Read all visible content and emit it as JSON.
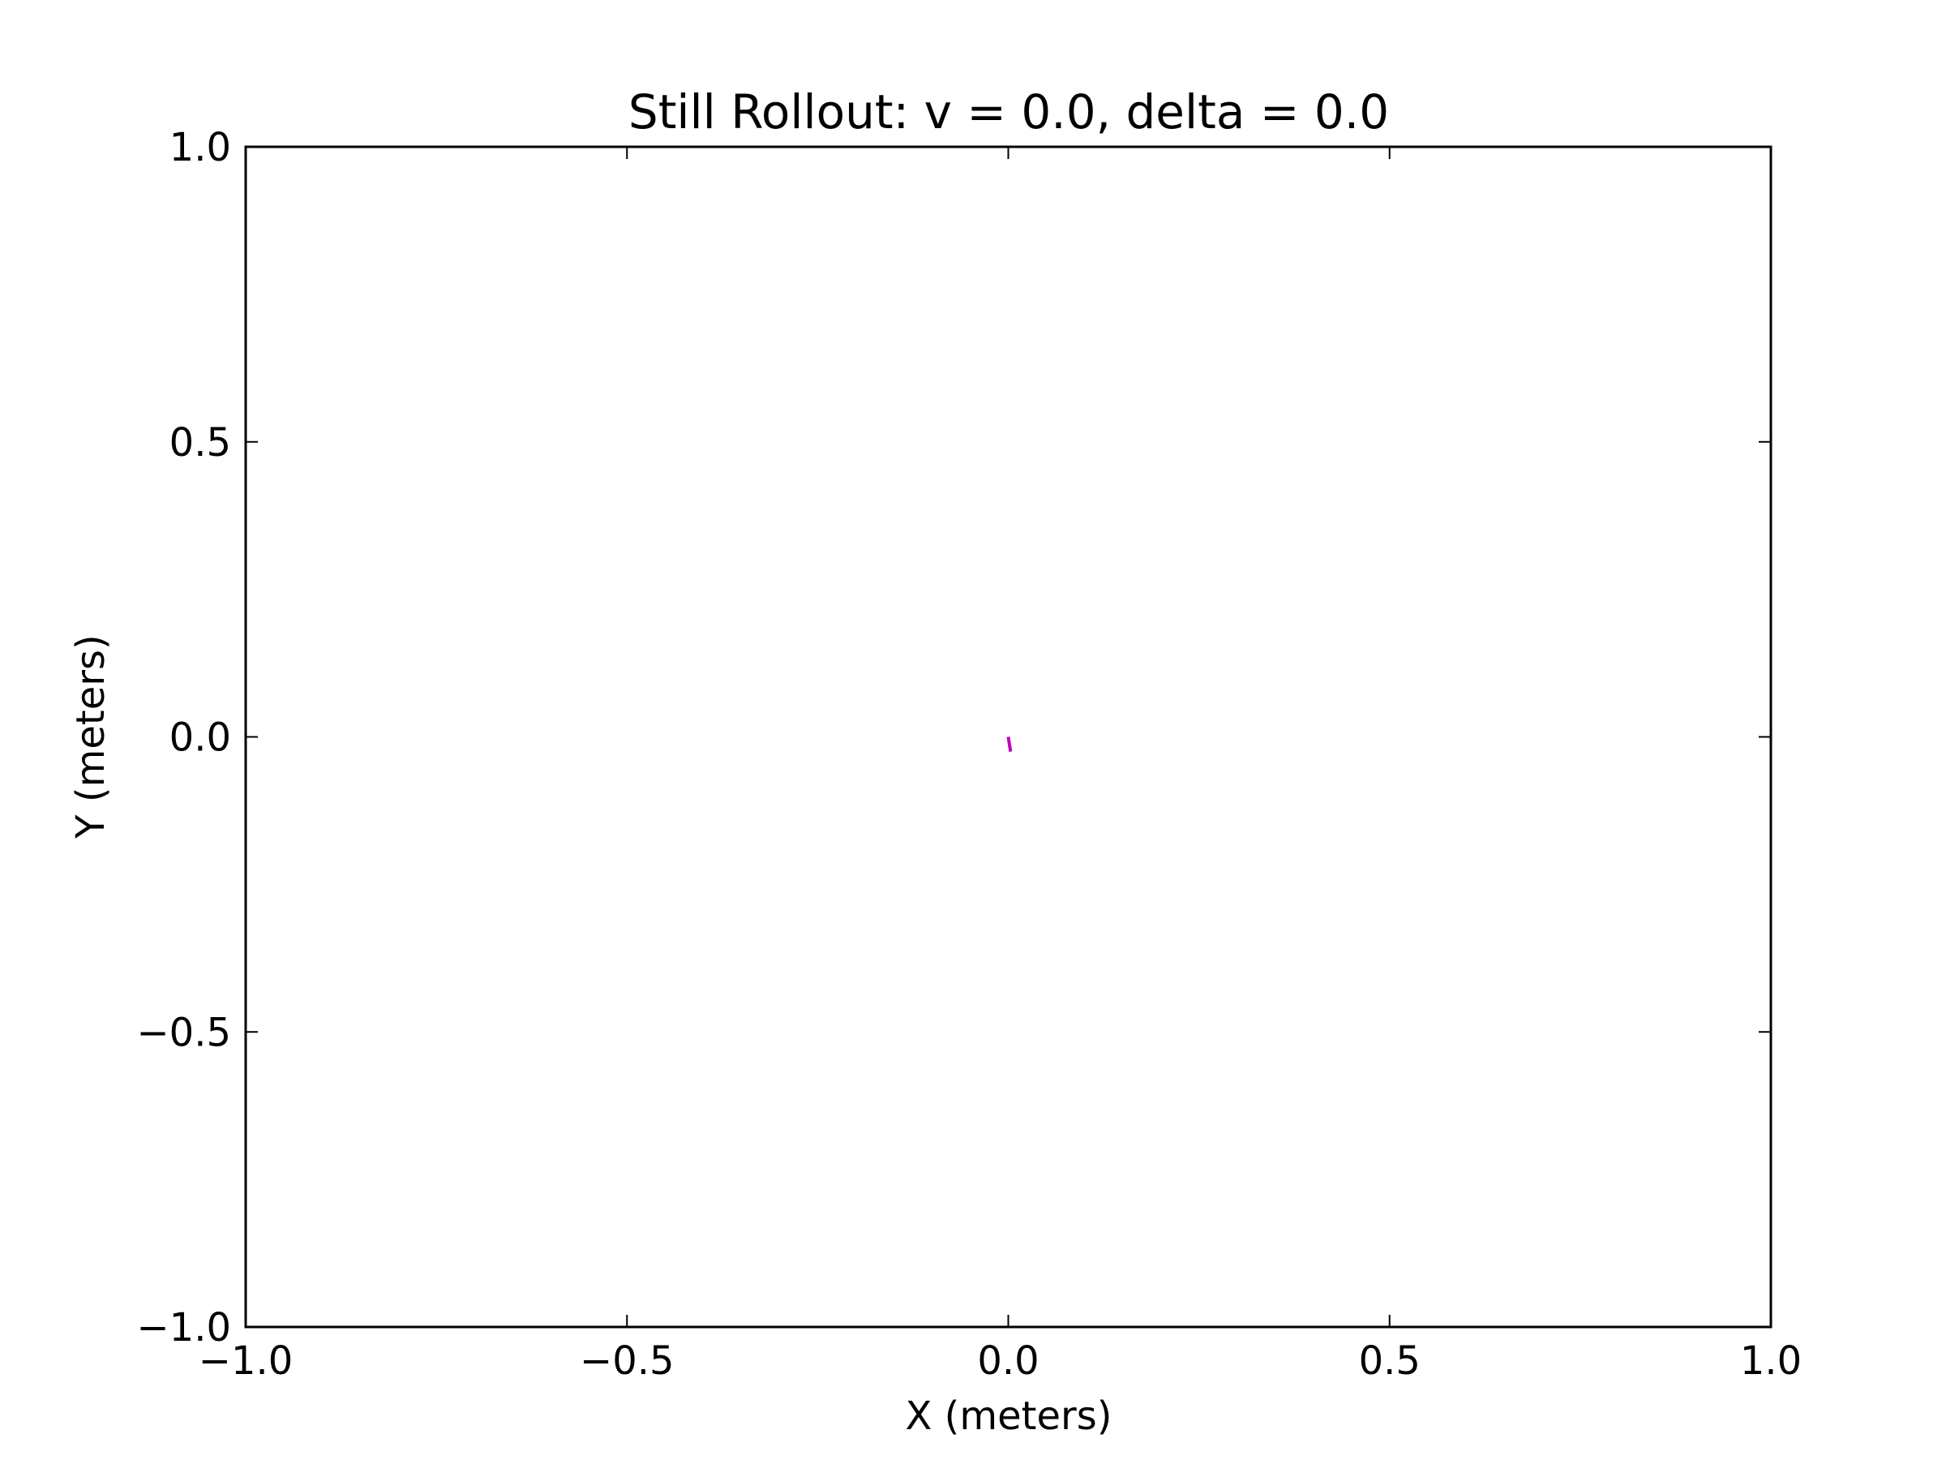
{
  "chart_data": {
    "type": "line",
    "title": "Still Rollout: v = 0.0, delta = 0.0",
    "xlabel": "X (meters)",
    "ylabel": "Y (meters)",
    "xlim": [
      -1.0,
      1.0
    ],
    "ylim": [
      -1.0,
      1.0
    ],
    "x_ticks": [
      -1.0,
      -0.5,
      0.0,
      0.5,
      1.0
    ],
    "x_tick_labels": [
      "−1.0",
      "−0.5",
      "0.0",
      "0.5",
      "1.0"
    ],
    "y_ticks": [
      -1.0,
      -0.5,
      0.0,
      0.5,
      1.0
    ],
    "y_tick_labels": [
      "−1.0",
      "−0.5",
      "0.0",
      "0.5",
      "1.0"
    ],
    "grid": false,
    "legend": "none",
    "series": [
      {
        "color": "#bf00bf",
        "x": [
          0.0,
          0.003
        ],
        "y": [
          0.0,
          -0.025
        ]
      }
    ]
  }
}
